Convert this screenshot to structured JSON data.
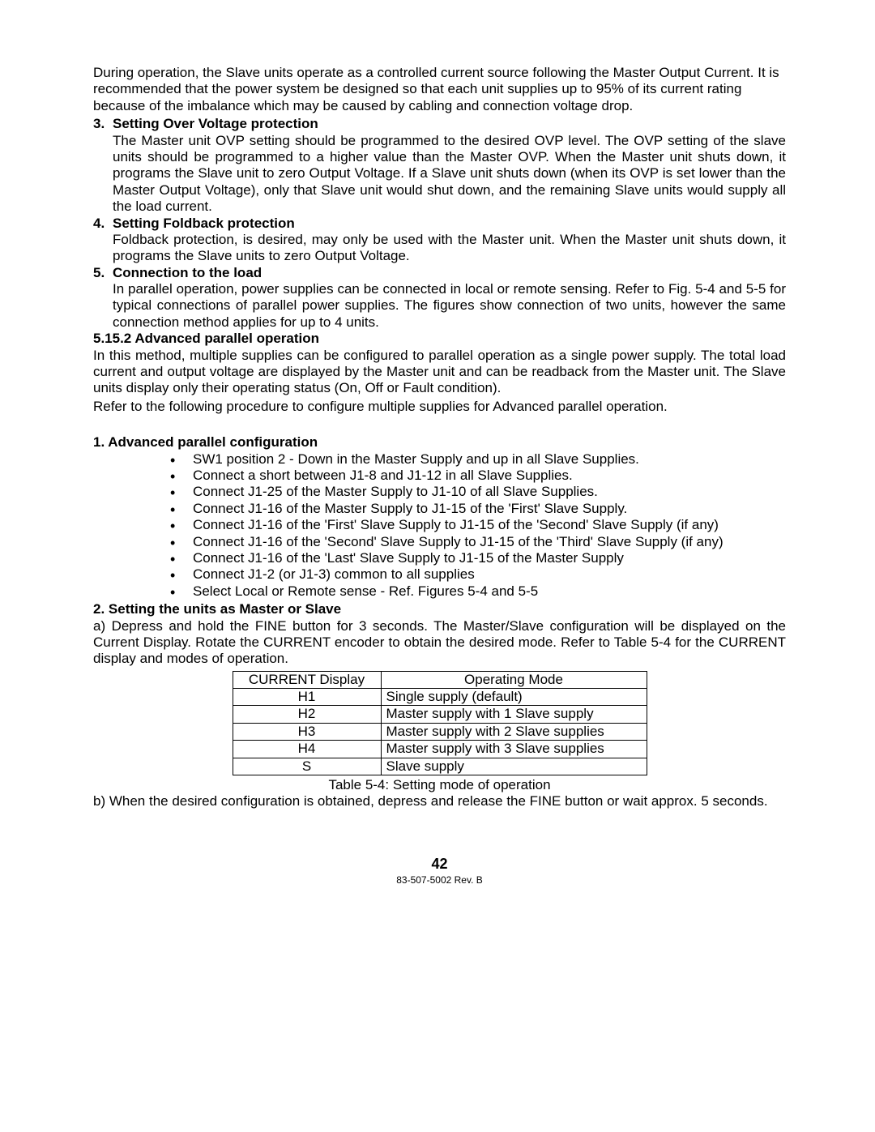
{
  "intro": "During operation, the Slave units operate as a controlled current source following the Master Output Current. It is recommended that the power system be designed so that each unit supplies up to 95% of its current rating because of the imbalance which may be caused by cabling and connection voltage drop.",
  "items": [
    {
      "num": "3.",
      "title": "Setting Over Voltage protection",
      "body": "The Master unit OVP setting should be programmed to the desired OVP level. The OVP setting of the slave units should be programmed to a higher value than the Master OVP. When the Master unit shuts down, it programs the Slave unit to zero Output Voltage. If a Slave unit shuts down (when its OVP is set lower than the Master Output Voltage), only that Slave unit would shut down, and the remaining Slave units would supply all the load current."
    },
    {
      "num": "4.",
      "title": "Setting Foldback protection",
      "body": "Foldback protection, is desired, may only be used with the Master unit. When the Master unit shuts down, it programs the Slave units to zero Output Voltage."
    },
    {
      "num": "5.",
      "title": "Connection to the load",
      "body": "In parallel operation, power supplies can be connected in local or remote sensing. Refer to Fig. 5-4 and 5-5 for typical connections of parallel power supplies. The figures show connection of two units, however the same connection method applies for up to 4 units."
    }
  ],
  "s5152": {
    "heading": "5.15.2  Advanced parallel operation",
    "p1": "In this method, multiple supplies can be configured to parallel operation as a single power supply. The total load current and output voltage are displayed by the Master unit and can be readback from the Master unit. The Slave units display only their operating status (On, Off or Fault condition).",
    "p2": "Refer to the following procedure to configure multiple supplies for Advanced parallel operation."
  },
  "config": {
    "heading": "1. Advanced parallel configuration",
    "bullets": [
      "SW1 position 2 - Down in the Master Supply and up in all Slave Supplies.",
      "Connect a short between J1-8 and J1-12 in all Slave Supplies.",
      "Connect J1-25 of the Master Supply to J1-10 of all Slave Supplies.",
      "Connect J1-16 of the Master Supply to J1-15 of the 'First' Slave Supply.",
      "Connect J1-16 of the 'First' Slave Supply to J1-15 of the 'Second' Slave Supply (if any)",
      "Connect J1-16 of the 'Second' Slave Supply to J1-15 of the 'Third' Slave Supply (if any)",
      "Connect J1-16 of the 'Last' Slave Supply to J1-15 of the Master Supply",
      "Connect J1-2 (or  J1-3) common to all supplies",
      "Select Local or Remote sense - Ref. Figures 5-4 and 5-5"
    ]
  },
  "setting": {
    "heading": "2. Setting the units as Master or Slave",
    "a": "a) Depress and hold the FINE button for 3 seconds. The Master/Slave configuration will be displayed on the Current Display. Rotate the CURRENT encoder to obtain the desired mode. Refer to Table 5-4 for the CURRENT display and modes of operation.",
    "table": {
      "headers": [
        "CURRENT Display",
        "Operating Mode"
      ],
      "rows": [
        [
          "H1",
          "Single supply (default)"
        ],
        [
          "H2",
          "Master supply with 1 Slave supply"
        ],
        [
          "H3",
          "Master supply with 2 Slave supplies"
        ],
        [
          "H4",
          "Master supply with 3 Slave supplies"
        ],
        [
          "S",
          "Slave supply"
        ]
      ],
      "caption": "Table 5-4: Setting mode of operation"
    },
    "b": "b) When the desired configuration is obtained, depress and release the FINE button or wait approx. 5 seconds."
  },
  "page_number": "42",
  "doc_rev": "83-507-5002 Rev. B"
}
